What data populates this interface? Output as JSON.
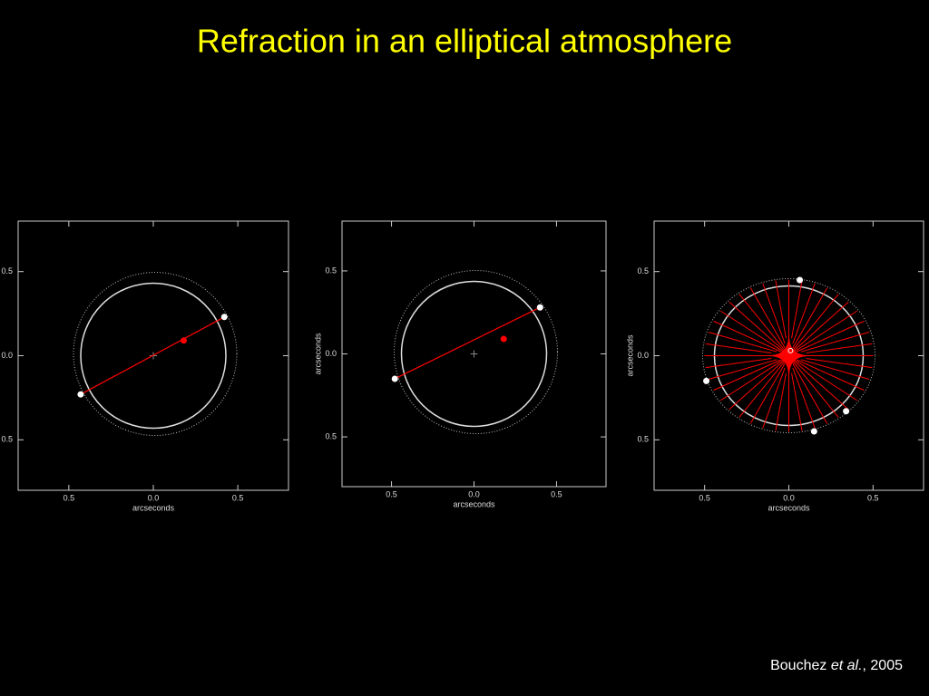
{
  "title": "Refraction in an elliptical atmosphere",
  "credit": {
    "author": "Bouchez ",
    "etal": "et al.",
    "year": ", 2005"
  },
  "chart_data": [
    {
      "type": "scatter",
      "xlabel": "arcseconds",
      "xlim": [
        -0.8,
        0.8
      ],
      "ylim": [
        -0.8,
        0.8
      ],
      "xticks": [
        {
          "value": -0.5,
          "label": "0.5"
        },
        {
          "value": 0,
          "label": "0.0"
        },
        0.5
      ],
      "yticks": [
        {
          "value": -0.5,
          "label": "0.5"
        },
        {
          "value": 0,
          "label": "0.0"
        },
        0.5
      ],
      "connect": true,
      "line_color": "#ff0000",
      "series": [
        {
          "color": "#ffffff",
          "x": [
            -0.43,
            0.42
          ],
          "values": [
            -0.23,
            0.23
          ]
        },
        {
          "color": "#ff0000",
          "x": [
            0.18
          ],
          "values": [
            0.09
          ]
        }
      ]
    },
    {
      "type": "scatter",
      "xlabel": "arcseconds",
      "ylabel": "arcseconds",
      "xlim": [
        -0.8,
        0.8
      ],
      "ylim": [
        -0.8,
        0.8
      ],
      "xticks": [
        {
          "value": -0.5,
          "label": "0.5"
        },
        {
          "value": 0,
          "label": "0.0"
        },
        0.5
      ],
      "yticks": [
        {
          "value": -0.5,
          "label": "0.5"
        },
        {
          "value": 0,
          "label": "0.0"
        },
        0.5
      ],
      "connect": true,
      "line_color": "#ff0000",
      "series": [
        {
          "color": "#ffffff",
          "x": [
            -0.48,
            0.4
          ],
          "values": [
            -0.15,
            0.28
          ]
        },
        {
          "color": "#ff0000",
          "x": [
            0.18
          ],
          "values": [
            0.09
          ]
        }
      ]
    },
    {
      "type": "scatter",
      "xlabel": "arcseconds",
      "ylabel": "arcseconds",
      "xlim": [
        -0.8,
        0.8
      ],
      "ylim": [
        -0.8,
        0.8
      ],
      "xticks": [
        {
          "value": -0.5,
          "label": "0.5"
        },
        {
          "value": 0,
          "label": "0.0"
        },
        0.5
      ],
      "yticks": [
        {
          "value": -0.5,
          "label": "0.5"
        },
        {
          "value": 0,
          "label": "0.0"
        },
        0.5
      ],
      "connect": false,
      "rays": true,
      "line_color": "#ff0000",
      "series": [
        {
          "color": "#ffffff",
          "x": [
            0.065,
            -0.49,
            0.15,
            0.34
          ],
          "values": [
            0.45,
            -0.15,
            -0.45,
            -0.33
          ]
        },
        {
          "color": "#ffffff",
          "marker": "open",
          "x": [
            0.01
          ],
          "values": [
            0.03
          ]
        }
      ]
    }
  ]
}
